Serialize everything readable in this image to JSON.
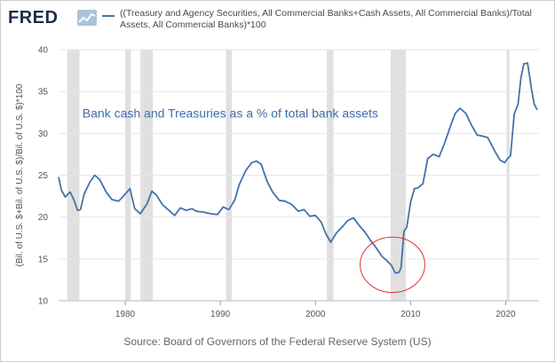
{
  "header": {
    "logo_text": "FRED",
    "logo_icon": "chart-trend-icon"
  },
  "source_text": "Source: Board of Governors of the Federal Reserve System (US)",
  "colors": {
    "series": "#4572a7",
    "recession": "#e0e0e0",
    "grid": "#e6e6e6",
    "annotation": "#3f6ea8",
    "circle": "#e03030"
  },
  "chart_data": {
    "type": "line",
    "title": "",
    "xlabel": "",
    "ylabel": "(Bil. of U.S. $+Bil. of U.S. $)/Bil. of U.S. $)*100",
    "xlim": [
      1973,
      2023.5
    ],
    "ylim": [
      10,
      40
    ],
    "x_ticks": [
      "1980",
      "1990",
      "2000",
      "2010",
      "2020"
    ],
    "y_ticks": [
      "10",
      "15",
      "20",
      "25",
      "30",
      "35",
      "40"
    ],
    "grid": "horizontal",
    "legend_position": "top",
    "series": [
      {
        "name": "((Treasury and Agency Securities, All Commercial Banks+Cash Assets, All Commercial Banks)/Total Assets, All Commercial Banks)*100",
        "x": [
          1973.0,
          1973.3,
          1973.7,
          1974.2,
          1974.6,
          1975.0,
          1975.3,
          1975.7,
          1976.3,
          1976.8,
          1977.3,
          1978.0,
          1978.6,
          1979.3,
          1979.9,
          1980.5,
          1981.0,
          1981.6,
          1982.3,
          1982.8,
          1983.3,
          1983.9,
          1984.5,
          1985.2,
          1985.8,
          1986.4,
          1987.0,
          1987.5,
          1988.2,
          1989.0,
          1989.7,
          1990.3,
          1990.9,
          1991.5,
          1992.0,
          1992.7,
          1993.3,
          1993.8,
          1994.3,
          1994.9,
          1995.5,
          1996.2,
          1996.8,
          1997.5,
          1998.2,
          1998.8,
          1999.4,
          2000.0,
          2000.6,
          2001.1,
          2001.6,
          2002.2,
          2002.8,
          2003.4,
          2004.0,
          2004.6,
          2005.2,
          2005.8,
          2006.4,
          2007.0,
          2007.5,
          2008.0,
          2008.4,
          2008.8,
          2009.0,
          2009.3,
          2009.6,
          2010.0,
          2010.4,
          2010.8,
          2011.3,
          2011.8,
          2012.4,
          2013.0,
          2013.6,
          2014.2,
          2014.7,
          2015.2,
          2015.8,
          2016.4,
          2017.0,
          2017.5,
          2018.1,
          2018.8,
          2019.4,
          2019.9,
          2020.2,
          2020.5,
          2020.9,
          2021.3,
          2021.6,
          2021.9,
          2022.3,
          2022.7,
          2023.0,
          2023.3
        ],
        "values": [
          24.8,
          23.2,
          22.4,
          23.0,
          22.1,
          20.8,
          20.9,
          22.8,
          24.2,
          25.0,
          24.5,
          23.0,
          22.1,
          21.9,
          22.6,
          23.4,
          21.0,
          20.4,
          21.6,
          23.1,
          22.6,
          21.5,
          20.9,
          20.2,
          21.1,
          20.8,
          21.0,
          20.7,
          20.6,
          20.4,
          20.3,
          21.2,
          20.9,
          22.0,
          23.9,
          25.6,
          26.5,
          26.7,
          26.3,
          24.3,
          23.0,
          22.0,
          21.9,
          21.5,
          20.7,
          20.9,
          20.1,
          20.2,
          19.4,
          18.0,
          17.0,
          18.1,
          18.8,
          19.6,
          19.9,
          19.0,
          18.2,
          17.2,
          16.3,
          15.3,
          14.8,
          14.2,
          13.3,
          13.4,
          14.0,
          18.3,
          18.8,
          21.8,
          23.4,
          23.5,
          24.0,
          27.0,
          27.5,
          27.2,
          28.9,
          30.9,
          32.4,
          33.0,
          32.4,
          31.0,
          29.8,
          29.7,
          29.5,
          28.0,
          26.8,
          26.5,
          27.0,
          27.3,
          32.3,
          33.5,
          36.6,
          38.3,
          38.4,
          35.4,
          33.5,
          32.8
        ]
      }
    ],
    "recessions": [
      [
        1973.9,
        1975.2
      ],
      [
        1980.0,
        1980.6
      ],
      [
        1981.6,
        1982.9
      ],
      [
        1990.6,
        1991.2
      ],
      [
        2001.2,
        2001.9
      ],
      [
        2007.9,
        2009.5
      ],
      [
        2020.1,
        2020.4
      ]
    ],
    "annotations": [
      {
        "text": "Bank cash and Treasuries as a % of total bank assets",
        "x": 1975.5,
        "y": 31.9
      }
    ],
    "highlight_circle": {
      "x": 2008.1,
      "y": 14.3,
      "rx_years": 3.4,
      "ry_values": 3.3
    }
  }
}
